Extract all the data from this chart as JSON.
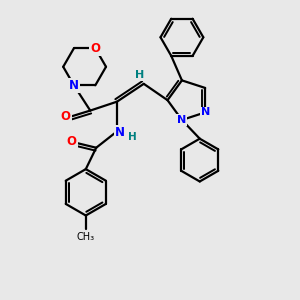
{
  "bg_color": "#e8e8e8",
  "atom_colors": {
    "C": "#000000",
    "N": "#0000ff",
    "O": "#ff0000",
    "H": "#008080"
  },
  "bond_color": "#000000",
  "line_width": 1.6,
  "figsize": [
    3.0,
    3.0
  ],
  "dpi": 100
}
